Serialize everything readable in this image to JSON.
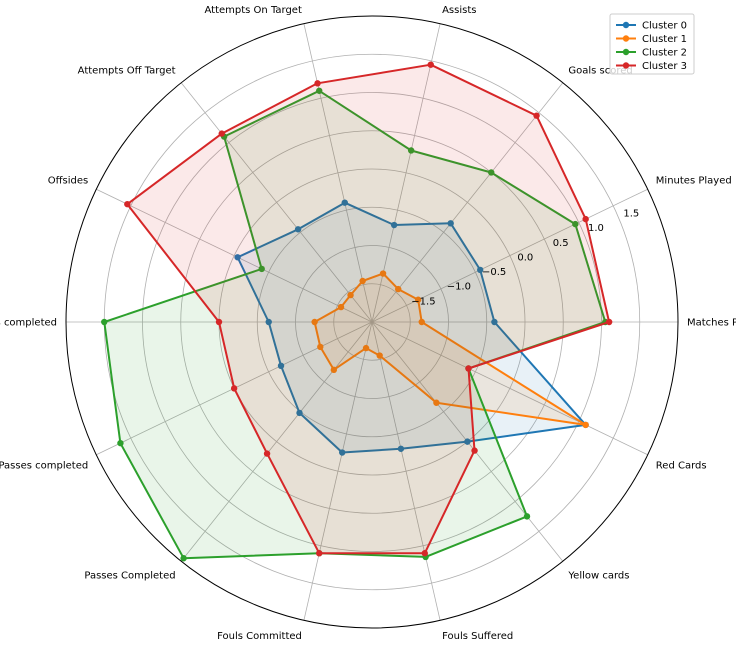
{
  "chart_data": {
    "type": "radar",
    "axes": [
      "Matches Played",
      "Minutes Played",
      "Goals scored",
      "Assists",
      "Attempts On Target",
      "Attempts Off Target",
      "Offsides",
      "Long Passes completed",
      "Medium Passes completed",
      "Passes Completed",
      "Fouls Committed",
      "Fouls Suffered",
      "Yellow cards",
      "Red Cards"
    ],
    "radial_ticks": [
      "−1.5",
      "−1.0",
      "−0.5",
      "0.0",
      "0.5",
      "1.0",
      "1.5"
    ],
    "radial_tick_values": [
      -1.5,
      -1.0,
      -0.5,
      0.0,
      0.5,
      1.0,
      1.5
    ],
    "rlim": [
      -2.0,
      2.0
    ],
    "grid": true,
    "legend_position": "top-right",
    "series": [
      {
        "name": "Cluster 0",
        "color": "#1f77b4",
        "values": [
          -0.4,
          -0.43,
          -0.35,
          -0.7,
          -0.4,
          -0.45,
          -0.05,
          -0.65,
          -0.68,
          -0.48,
          -0.25,
          -0.3,
          0.0,
          1.1
        ]
      },
      {
        "name": "Cluster 1",
        "color": "#ff7f0e",
        "values": [
          -1.35,
          -1.33,
          -1.45,
          -1.35,
          -1.45,
          -1.55,
          -1.55,
          -1.25,
          -1.25,
          -1.2,
          -1.65,
          -1.55,
          -0.65,
          1.1
        ]
      },
      {
        "name": "Cluster 2",
        "color": "#2ca02c",
        "values": [
          1.05,
          0.95,
          0.5,
          0.3,
          1.1,
          1.1,
          -0.4,
          1.5,
          1.65,
          1.95,
          1.1,
          1.15,
          1.25,
          -0.6
        ]
      },
      {
        "name": "Cluster 3",
        "color": "#d62728",
        "values": [
          1.1,
          1.1,
          1.45,
          1.45,
          1.2,
          1.15,
          1.55,
          0.0,
          0.0,
          0.2,
          1.1,
          1.1,
          0.15,
          -0.6
        ]
      }
    ]
  }
}
